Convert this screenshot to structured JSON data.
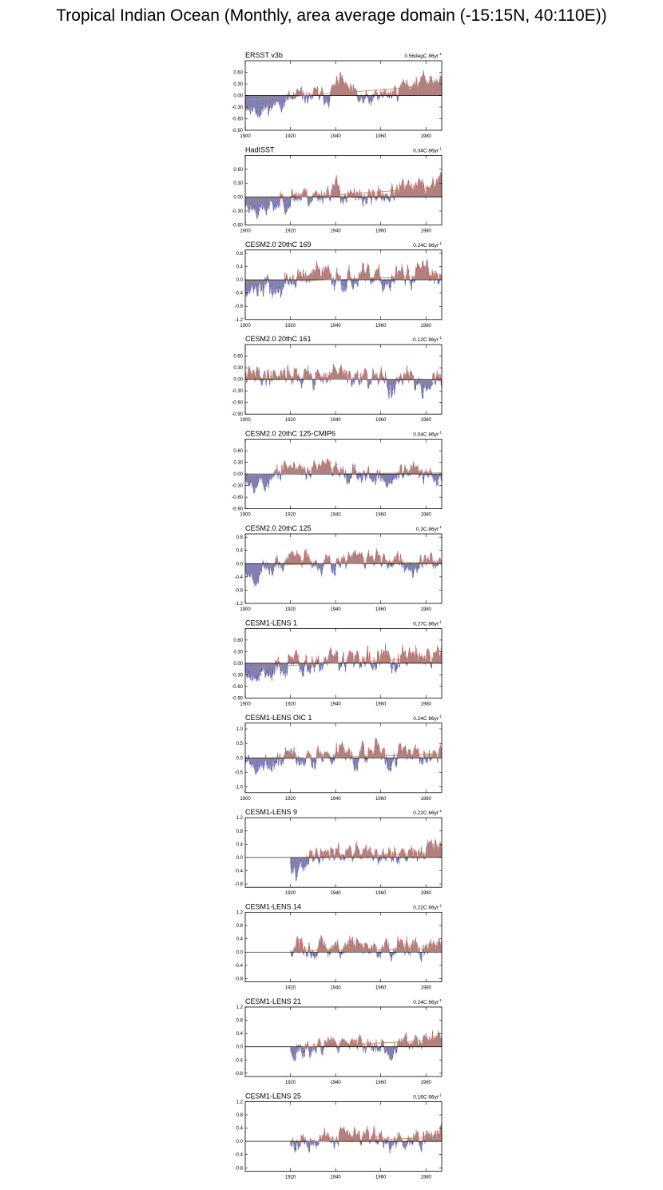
{
  "title": "Tropical Indian Ocean (Monthly, area average domain (-15:15N, 40:110E))",
  "colors": {
    "positive": "#ff0000",
    "negative": "#0000ff",
    "outline": "#a0a0a0",
    "zero_line": "#000000",
    "trend_line": "#b38a5a"
  },
  "chart_data": [
    {
      "type": "bar",
      "name": "ERSST v3b",
      "trend": "0.56degC 86yr",
      "trend_sup": "-1",
      "x_start": 1900,
      "x_end": 1986,
      "xticks": [
        "1900",
        "1920",
        "1940",
        "1960",
        "1980"
      ],
      "ylim": [
        -0.9,
        0.9
      ],
      "yticks": [
        "0.60",
        "0.30",
        "0.00",
        "-0.30",
        "-0.60",
        "-0.90"
      ],
      "ytick_values": [
        0.6,
        0.3,
        0,
        -0.3,
        -0.6,
        -0.9
      ],
      "keypoints": [
        [
          1900,
          -0.2
        ],
        [
          1905,
          -0.35
        ],
        [
          1910,
          -0.3
        ],
        [
          1915,
          -0.15
        ],
        [
          1920,
          -0.1
        ],
        [
          1925,
          -0.05
        ],
        [
          1930,
          0.0
        ],
        [
          1935,
          -0.05
        ],
        [
          1940,
          0.2
        ],
        [
          1942,
          0.45
        ],
        [
          1945,
          0.1
        ],
        [
          1950,
          -0.1
        ],
        [
          1955,
          -0.15
        ],
        [
          1960,
          0.0
        ],
        [
          1965,
          0.05
        ],
        [
          1970,
          0.25
        ],
        [
          1975,
          0.3
        ],
        [
          1980,
          0.35
        ],
        [
          1986,
          0.45
        ]
      ],
      "amplitude": 0.18,
      "seed": 11
    },
    {
      "type": "bar",
      "name": "HadISST",
      "trend": "0.34C 86yr",
      "trend_sup": "-1",
      "x_start": 1900,
      "x_end": 1986,
      "xticks": [
        "1900",
        "1920",
        "1940",
        "1960",
        "1980"
      ],
      "ylim": [
        -0.6,
        0.9
      ],
      "yticks": [
        "0.60",
        "0.30",
        "0.00",
        "-0.30",
        "-0.60"
      ],
      "ytick_values": [
        0.6,
        0.3,
        0,
        -0.3,
        -0.6
      ],
      "keypoints": [
        [
          1900,
          -0.15
        ],
        [
          1905,
          -0.2
        ],
        [
          1910,
          -0.25
        ],
        [
          1915,
          -0.1
        ],
        [
          1920,
          0.0
        ],
        [
          1925,
          0.05
        ],
        [
          1930,
          0.0
        ],
        [
          1935,
          0.1
        ],
        [
          1940,
          0.2
        ],
        [
          1945,
          0.0
        ],
        [
          1950,
          -0.05
        ],
        [
          1955,
          0.0
        ],
        [
          1960,
          0.05
        ],
        [
          1965,
          0.1
        ],
        [
          1970,
          0.15
        ],
        [
          1975,
          0.15
        ],
        [
          1980,
          0.2
        ],
        [
          1986,
          0.35
        ]
      ],
      "amplitude": 0.17,
      "seed": 23
    },
    {
      "type": "bar",
      "name": "CESM2.0 20thC 169",
      "trend": "0.24C 86yr",
      "trend_sup": "-1",
      "x_start": 1900,
      "x_end": 1986,
      "xticks": [
        "1900",
        "1920",
        "1940",
        "1960",
        "1980"
      ],
      "ylim": [
        -1.2,
        0.9
      ],
      "yticks": [
        "0.8",
        "0.4",
        "0.0",
        "-0.4",
        "-0.8",
        "-1.2"
      ],
      "ytick_values": [
        0.8,
        0.4,
        0,
        -0.4,
        -0.8,
        -1.2
      ],
      "keypoints": [
        [
          1900,
          -0.15
        ],
        [
          1910,
          -0.2
        ],
        [
          1915,
          -0.3
        ],
        [
          1920,
          0.0
        ],
        [
          1930,
          0.1
        ],
        [
          1940,
          0.1
        ],
        [
          1950,
          0.05
        ],
        [
          1960,
          -0.05
        ],
        [
          1970,
          0.1
        ],
        [
          1980,
          0.15
        ],
        [
          1986,
          0.2
        ]
      ],
      "amplitude": 0.28,
      "seed": 37
    },
    {
      "type": "bar",
      "name": "CESM2.0 20thC 161",
      "trend": "-0.12C 86yr",
      "trend_sup": "-1",
      "x_start": 1900,
      "x_end": 1986,
      "xticks": [
        "1900",
        "1920",
        "1940",
        "1960",
        "1980"
      ],
      "ylim": [
        -0.9,
        0.9
      ],
      "yticks": [
        "0.60",
        "0.30",
        "0.00",
        "-0.30",
        "-0.60",
        "-0.90"
      ],
      "ytick_values": [
        0.6,
        0.3,
        0,
        -0.3,
        -0.6,
        -0.9
      ],
      "keypoints": [
        [
          1900,
          0.05
        ],
        [
          1910,
          0.1
        ],
        [
          1918,
          0.2
        ],
        [
          1925,
          0.05
        ],
        [
          1935,
          0.1
        ],
        [
          1940,
          0.15
        ],
        [
          1950,
          0.0
        ],
        [
          1960,
          -0.05
        ],
        [
          1965,
          -0.15
        ],
        [
          1970,
          0.0
        ],
        [
          1980,
          -0.05
        ],
        [
          1986,
          -0.05
        ]
      ],
      "amplitude": 0.22,
      "seed": 41
    },
    {
      "type": "bar",
      "name": "CESM2.0 20thC 125-CMIP6",
      "trend": "0.04C 86yr",
      "trend_sup": "-1",
      "x_start": 1900,
      "x_end": 1986,
      "xticks": [
        "1900",
        "1920",
        "1940",
        "1960",
        "1980"
      ],
      "ylim": [
        -0.9,
        0.9
      ],
      "yticks": [
        "0.60",
        "0.30",
        "0.00",
        "-0.30",
        "-0.60",
        "-0.90"
      ],
      "ytick_values": [
        0.6,
        0.3,
        0,
        -0.3,
        -0.6,
        -0.9
      ],
      "keypoints": [
        [
          1900,
          0.0
        ],
        [
          1905,
          -0.15
        ],
        [
          1910,
          -0.2
        ],
        [
          1915,
          0.0
        ],
        [
          1920,
          0.15
        ],
        [
          1930,
          0.1
        ],
        [
          1940,
          0.15
        ],
        [
          1950,
          0.05
        ],
        [
          1960,
          -0.05
        ],
        [
          1963,
          -0.25
        ],
        [
          1970,
          0.05
        ],
        [
          1980,
          0.0
        ],
        [
          1986,
          0.05
        ]
      ],
      "amplitude": 0.2,
      "seed": 53
    },
    {
      "type": "bar",
      "name": "CESM2.0 20thC 125",
      "trend": "0.3C 86yr",
      "trend_sup": "-1",
      "x_start": 1900,
      "x_end": 1986,
      "xticks": [
        "1900",
        "1920",
        "1940",
        "1960",
        "1980"
      ],
      "ylim": [
        -1.2,
        0.9
      ],
      "yticks": [
        "0.8",
        "0.4",
        "0.0",
        "-0.4",
        "-0.8",
        "-1.2"
      ],
      "ytick_values": [
        0.8,
        0.4,
        0,
        -0.4,
        -0.8,
        -1.2
      ],
      "keypoints": [
        [
          1900,
          -0.1
        ],
        [
          1905,
          -0.3
        ],
        [
          1910,
          -0.2
        ],
        [
          1915,
          -0.05
        ],
        [
          1920,
          0.15
        ],
        [
          1928,
          0.2
        ],
        [
          1935,
          0.05
        ],
        [
          1945,
          0.1
        ],
        [
          1955,
          0.2
        ],
        [
          1960,
          -0.05
        ],
        [
          1965,
          -0.1
        ],
        [
          1970,
          0.05
        ],
        [
          1980,
          0.1
        ],
        [
          1986,
          0.1
        ]
      ],
      "amplitude": 0.22,
      "seed": 67
    },
    {
      "type": "bar",
      "name": "CESM1-LENS 1",
      "trend": "0.27C 86yr",
      "trend_sup": "-1",
      "x_start": 1900,
      "x_end": 1986,
      "xticks": [
        "1900",
        "1920",
        "1940",
        "1960",
        "1980"
      ],
      "ylim": [
        -0.9,
        0.9
      ],
      "yticks": [
        "0.60",
        "0.30",
        "0.00",
        "-0.30",
        "-0.60",
        "-0.90"
      ],
      "ytick_values": [
        0.6,
        0.3,
        0,
        -0.3,
        -0.6,
        -0.9
      ],
      "keypoints": [
        [
          1900,
          -0.2
        ],
        [
          1910,
          -0.15
        ],
        [
          1920,
          0.0
        ],
        [
          1930,
          0.05
        ],
        [
          1940,
          0.1
        ],
        [
          1950,
          0.05
        ],
        [
          1960,
          0.0
        ],
        [
          1970,
          0.15
        ],
        [
          1980,
          0.1
        ],
        [
          1986,
          0.25
        ]
      ],
      "amplitude": 0.26,
      "seed": 79
    },
    {
      "type": "bar",
      "name": "CESM1-LENS OIC 1",
      "trend": "0.24C 86yr",
      "trend_sup": "-1",
      "x_start": 1900,
      "x_end": 1986,
      "xticks": [
        "1900",
        "1920",
        "1940",
        "1960",
        "1980"
      ],
      "ylim": [
        -1.2,
        1.2
      ],
      "yticks": [
        "1.0",
        "0.5",
        "0.0",
        "-0.5",
        "-1.0"
      ],
      "ytick_values": [
        1.0,
        0.5,
        0,
        -0.5,
        -1.0
      ],
      "keypoints": [
        [
          1900,
          -0.1
        ],
        [
          1905,
          -0.3
        ],
        [
          1910,
          -0.2
        ],
        [
          1920,
          0.05
        ],
        [
          1930,
          0.0
        ],
        [
          1940,
          0.15
        ],
        [
          1950,
          0.1
        ],
        [
          1960,
          0.2
        ],
        [
          1963,
          -0.3
        ],
        [
          1970,
          0.2
        ],
        [
          1980,
          0.15
        ],
        [
          1986,
          0.2
        ]
      ],
      "amplitude": 0.3,
      "seed": 89
    },
    {
      "type": "bar",
      "name": "CESM1-LENS 9",
      "trend": "0.22C 66yr",
      "trend_sup": "-1",
      "x_start": 1920,
      "x_end": 1986,
      "xticks": [
        "1920",
        "1940",
        "1960",
        "1980"
      ],
      "ylim": [
        -0.9,
        1.2
      ],
      "yticks": [
        "1.2",
        "0.8",
        "0.4",
        "0.0",
        "-0.4",
        "-0.8"
      ],
      "ytick_values": [
        1.2,
        0.8,
        0.4,
        0,
        -0.4,
        -0.8
      ],
      "keypoints": [
        [
          1920,
          -0.1
        ],
        [
          1925,
          -0.15
        ],
        [
          1930,
          -0.05
        ],
        [
          1940,
          0.05
        ],
        [
          1950,
          0.05
        ],
        [
          1955,
          0.0
        ],
        [
          1960,
          0.1
        ],
        [
          1965,
          0.05
        ],
        [
          1970,
          0.15
        ],
        [
          1980,
          0.2
        ],
        [
          1986,
          0.25
        ]
      ],
      "amplitude": 0.25,
      "seed": 97
    },
    {
      "type": "bar",
      "name": "CESM1-LENS 14",
      "trend": "0.22C 66yr",
      "trend_sup": "-1",
      "x_start": 1920,
      "x_end": 1986,
      "xticks": [
        "1920",
        "1940",
        "1960",
        "1980"
      ],
      "ylim": [
        -0.9,
        1.2
      ],
      "yticks": [
        "1.2",
        "0.8",
        "0.4",
        "0.0",
        "-0.4",
        "-0.8"
      ],
      "ytick_values": [
        1.2,
        0.8,
        0.4,
        0,
        -0.4,
        -0.8
      ],
      "keypoints": [
        [
          1920,
          0.05
        ],
        [
          1925,
          -0.1
        ],
        [
          1930,
          0.05
        ],
        [
          1940,
          0.1
        ],
        [
          1946,
          0.3
        ],
        [
          1950,
          0.05
        ],
        [
          1960,
          0.05
        ],
        [
          1970,
          0.1
        ],
        [
          1980,
          0.1
        ],
        [
          1986,
          0.15
        ]
      ],
      "amplitude": 0.25,
      "seed": 103
    },
    {
      "type": "bar",
      "name": "CESM1-LENS 21",
      "trend": "0.24C 66yr",
      "trend_sup": "-1",
      "x_start": 1920,
      "x_end": 1986,
      "xticks": [
        "1920",
        "1940",
        "1960",
        "1980"
      ],
      "ylim": [
        -0.9,
        1.2
      ],
      "yticks": [
        "1.2",
        "0.8",
        "0.4",
        "0.0",
        "-0.4",
        "-0.8"
      ],
      "ytick_values": [
        1.2,
        0.8,
        0.4,
        0,
        -0.4,
        -0.8
      ],
      "keypoints": [
        [
          1920,
          -0.05
        ],
        [
          1925,
          -0.15
        ],
        [
          1930,
          0.0
        ],
        [
          1940,
          0.1
        ],
        [
          1950,
          0.05
        ],
        [
          1960,
          0.0
        ],
        [
          1965,
          -0.1
        ],
        [
          1970,
          0.1
        ],
        [
          1980,
          0.1
        ],
        [
          1986,
          0.35
        ]
      ],
      "amplitude": 0.22,
      "seed": 113
    },
    {
      "type": "bar",
      "name": "CESM1-LENS 25",
      "trend": "0.16C 66yr",
      "trend_sup": "-1",
      "x_start": 1920,
      "x_end": 1986,
      "xticks": [
        "1920",
        "1940",
        "1960",
        "1980"
      ],
      "ylim": [
        -0.9,
        1.2
      ],
      "yticks": [
        "1.2",
        "0.8",
        "0.4",
        "0.0",
        "-0.4",
        "-0.8"
      ],
      "ytick_values": [
        1.2,
        0.8,
        0.4,
        0,
        -0.4,
        -0.8
      ],
      "keypoints": [
        [
          1920,
          -0.05
        ],
        [
          1925,
          0.05
        ],
        [
          1930,
          0.0
        ],
        [
          1940,
          0.05
        ],
        [
          1945,
          0.15
        ],
        [
          1950,
          0.25
        ],
        [
          1955,
          0.2
        ],
        [
          1960,
          0.1
        ],
        [
          1965,
          -0.1
        ],
        [
          1970,
          0.05
        ],
        [
          1980,
          0.1
        ],
        [
          1986,
          0.2
        ]
      ],
      "amplitude": 0.24,
      "seed": 127
    }
  ]
}
